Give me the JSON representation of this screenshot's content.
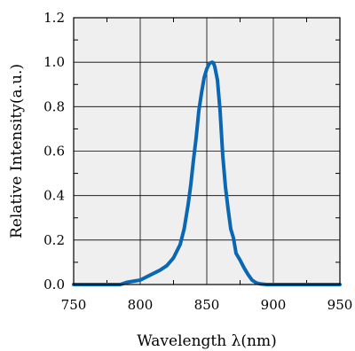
{
  "chart_data": {
    "type": "line",
    "title": "",
    "xlabel": "Wavelength λ(nm)",
    "ylabel": "Relative Intensity(a.u.)",
    "xlim": [
      750,
      950
    ],
    "ylim": [
      0,
      1.2
    ],
    "x_ticks": [
      "750",
      "800",
      "850",
      "900",
      "950"
    ],
    "y_ticks": [
      "0.0",
      "0.2",
      "0.4",
      "0.6",
      "0.8",
      "1.0",
      "1.2"
    ],
    "grid": true,
    "legend": "none",
    "colors": {
      "line": "#0a67b3",
      "plot_background": "#efefef",
      "grid": "#000000"
    },
    "series": [
      {
        "x": [
          750,
          785,
          790,
          795,
          800,
          805,
          810,
          815,
          820,
          825,
          830,
          833,
          836,
          838,
          840,
          842,
          844,
          846,
          848,
          850,
          852,
          854,
          855,
          856,
          858,
          860,
          862,
          864,
          866,
          868,
          870,
          872,
          875,
          878,
          881,
          884,
          887,
          890,
          895,
          900,
          950
        ],
        "y": [
          0.0,
          0.0,
          0.01,
          0.015,
          0.02,
          0.035,
          0.05,
          0.065,
          0.085,
          0.12,
          0.18,
          0.25,
          0.36,
          0.45,
          0.56,
          0.66,
          0.78,
          0.86,
          0.93,
          0.97,
          0.995,
          1.0,
          0.997,
          0.98,
          0.92,
          0.78,
          0.58,
          0.44,
          0.34,
          0.25,
          0.21,
          0.14,
          0.11,
          0.075,
          0.045,
          0.02,
          0.008,
          0.003,
          0.0,
          0.0,
          0.0
        ]
      }
    ]
  }
}
